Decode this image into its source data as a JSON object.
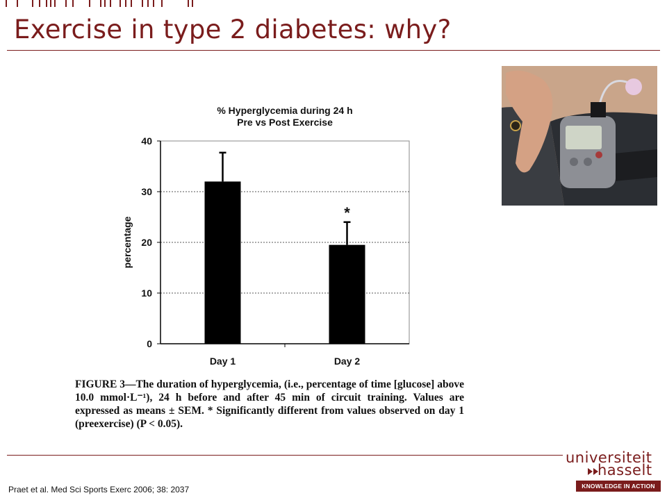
{
  "slide": {
    "title": "Exercise in type 2 diabetes: why?",
    "caption": "FIGURE 3—The duration of hyperglycemia, (i.e., percentage of time [glucose] above 10.0 mmol·L⁻¹), 24 h before and after 45 min of circuit training. Values are expressed as means ± SEM. * Significantly different from values observed on day 1 (preexercise) (P < 0.05).",
    "citation": "Praet et al. Med Sci Sports Exerc 2006; 38: 2037"
  },
  "logo": {
    "line1": "universiteit",
    "line2": "hasselt",
    "tagline": "KNOWLEDGE IN ACTION"
  },
  "chart_data": {
    "type": "bar",
    "title_line1": "% Hyperglycemia during 24 h",
    "title_line2": "Pre vs Post Exercise",
    "xlabel": "",
    "ylabel": "percentage",
    "categories": [
      "Day 1",
      "Day 2"
    ],
    "values": [
      32,
      19.5
    ],
    "errors": [
      5.7,
      4.5
    ],
    "annotations": [
      "",
      "*"
    ],
    "ylim": [
      0,
      40
    ],
    "yticks": [
      "0",
      "10",
      "20",
      "30",
      "40"
    ],
    "grid": true,
    "bar_color": "#000000"
  },
  "colors": {
    "accent": "#7a1c1c"
  }
}
